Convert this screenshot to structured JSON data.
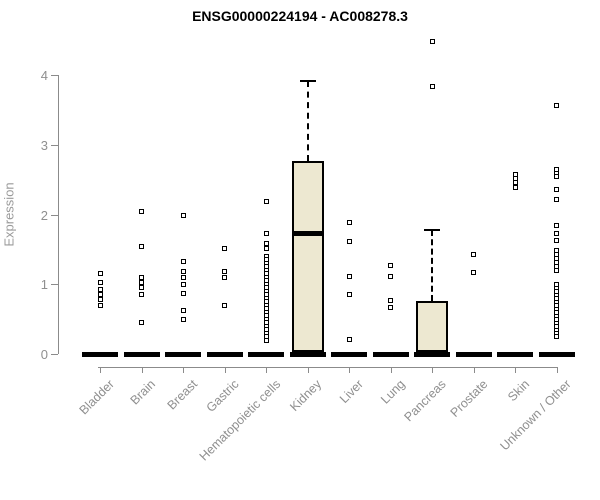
{
  "title": "ENSG00000224194 - AC008278.3",
  "colors": {
    "axis": "#8b8b8b",
    "tick_text": "#8f8f8f",
    "box_fill": "#ede8d1",
    "ink": "#000000",
    "background": "#ffffff"
  },
  "chart_data": {
    "type": "boxplot",
    "title": "ENSG00000224194 - AC008278.3",
    "xlabel": "",
    "ylabel": "Expression",
    "ylim": [
      0,
      4.5
    ],
    "y_ticks": [
      0,
      1,
      2,
      3,
      4
    ],
    "grid": "off",
    "legend": "none",
    "categories": [
      "Bladder",
      "Brain",
      "Breast",
      "Gastric",
      "Hematopoietic cells",
      "Kidney",
      "Liver",
      "Lung",
      "Pancreas",
      "Prostate",
      "Skin",
      "Unknown / Other"
    ],
    "groups": [
      {
        "name": "Bladder",
        "zero_bar": true,
        "box": null,
        "points": [
          1.15,
          1.02,
          0.93,
          0.85,
          0.78,
          0.7
        ]
      },
      {
        "name": "Brain",
        "zero_bar": true,
        "box": null,
        "points": [
          2.05,
          1.54,
          1.1,
          1.02,
          0.95,
          0.86,
          0.45
        ]
      },
      {
        "name": "Breast",
        "zero_bar": true,
        "box": null,
        "points": [
          1.98,
          1.32,
          1.18,
          1.09,
          1.0,
          0.87,
          0.63,
          0.49
        ]
      },
      {
        "name": "Gastric",
        "zero_bar": true,
        "box": null,
        "points": [
          1.51,
          1.18,
          1.1,
          0.7
        ]
      },
      {
        "name": "Hematopoietic cells",
        "zero_bar": true,
        "box": null,
        "points": [
          2.18,
          1.73,
          1.58,
          1.51,
          1.4,
          1.35,
          1.3,
          1.25,
          1.2,
          1.15,
          1.1,
          1.05,
          1.0,
          0.95,
          0.9,
          0.85,
          0.8,
          0.75,
          0.7,
          0.65,
          0.6,
          0.55,
          0.5,
          0.45,
          0.4,
          0.35,
          0.3,
          0.25,
          0.2
        ]
      },
      {
        "name": "Kidney",
        "zero_bar": true,
        "box": {
          "q1": 0.03,
          "median": 1.73,
          "q3": 2.76,
          "whisker_low": 0,
          "whisker_high": 3.92
        },
        "points": []
      },
      {
        "name": "Liver",
        "zero_bar": true,
        "box": null,
        "points": [
          1.88,
          1.62,
          1.11,
          0.85,
          0.21
        ]
      },
      {
        "name": "Lung",
        "zero_bar": true,
        "box": null,
        "points": [
          1.27,
          1.11,
          0.77,
          0.66
        ]
      },
      {
        "name": "Pancreas",
        "zero_bar": true,
        "box": {
          "q1": 0.0,
          "median": 0.02,
          "q3": 0.76,
          "whisker_low": 0,
          "whisker_high": 1.78
        },
        "points": [
          4.48,
          3.84
        ]
      },
      {
        "name": "Prostate",
        "zero_bar": true,
        "box": null,
        "points": [
          1.43,
          1.17
        ]
      },
      {
        "name": "Skin",
        "zero_bar": true,
        "box": null,
        "points": [
          2.57,
          2.52,
          2.46,
          2.39
        ]
      },
      {
        "name": "Unknown / Other",
        "zero_bar": true,
        "box": null,
        "points": [
          3.56,
          2.64,
          2.59,
          2.54,
          2.36,
          2.21,
          1.84,
          1.73,
          1.63,
          1.49,
          1.43,
          1.37,
          1.31,
          1.25,
          1.19,
          0.99,
          0.94,
          0.89,
          0.84,
          0.79,
          0.74,
          0.69,
          0.64,
          0.59,
          0.54,
          0.49,
          0.44,
          0.39,
          0.34,
          0.29,
          0.25
        ]
      }
    ]
  }
}
